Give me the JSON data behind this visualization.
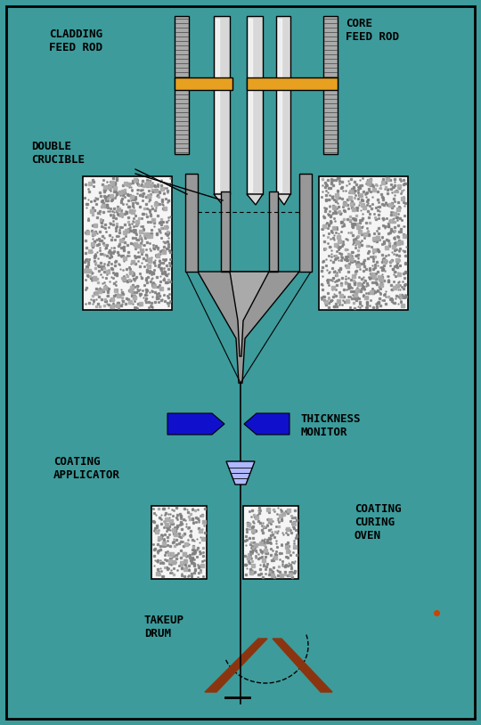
{
  "bg_color": "#3d9b9b",
  "fig_width": 5.4,
  "fig_height": 8.14,
  "labels": {
    "cladding_feed_rod": "CLADDING\nFEED ROD",
    "core_feed_rod": "CORE\nFEED ROD",
    "double_crucible": "DOUBLE\nCRUCIBLE",
    "thickness_monitor": "THICKNESS\nMONITOR",
    "coating_applicator": "COATING\nAPPLICATOR",
    "coating_curing_oven": "COATING\nCURING\nOVEN",
    "takeup_drum": "TAKEUP\nDRUM"
  },
  "colors": {
    "rod_gray_light": "#d8d8d8",
    "rod_gray_medium": "#c0c0c0",
    "rod_hatched": "#909090",
    "orange_clamp": "#e8a020",
    "crucible_gray": "#989898",
    "crucible_inner": "#aaaaaa",
    "fiber_black": "#000000",
    "blue_monitor": "#1010cc",
    "light_blue_applicator": "#b0b8ff",
    "brown_drum": "#8b3510",
    "white": "#ffffff",
    "text_black": "#000000",
    "noise_gray": "#888888",
    "noise_white": "#f0f0f0"
  }
}
